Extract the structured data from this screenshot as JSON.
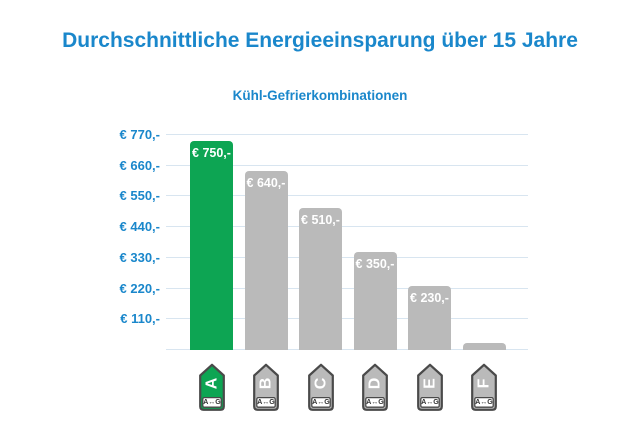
{
  "header": {
    "title": "Durchschnittliche Energieeinsparung über 15 Jahre",
    "subtitle": "Kühl-Gefrierkombinationen"
  },
  "colors": {
    "accent_blue": "#1a87cb",
    "bar_green": "#0da553",
    "bar_gray": "#bababa",
    "gridline": "#d8e5f0",
    "bar_label_text": "#ffffff",
    "icon_border": "#4a4a4a",
    "icon_letter": "#ffffff",
    "icon_scale_text": "#333333"
  },
  "chart_data": {
    "type": "bar",
    "title": "Durchschnittliche Energieeinsparung über 15 Jahre",
    "subtitle": "Kühl-Gefrierkombinationen",
    "categories": [
      "A",
      "B",
      "C",
      "D",
      "E",
      "F"
    ],
    "values": [
      750,
      640,
      510,
      350,
      230,
      25
    ],
    "bar_labels": [
      "€ 750,-",
      "€ 640,-",
      "€ 510,-",
      "€ 350,-",
      "€ 230,-",
      ""
    ],
    "bar_colors": [
      "#0da553",
      "#bababa",
      "#bababa",
      "#bababa",
      "#bababa",
      "#bababa"
    ],
    "y_ticks": [
      770,
      660,
      550,
      440,
      330,
      220,
      110
    ],
    "y_tick_labels": [
      "€ 770,-",
      "€ 660,-",
      "€ 550,-",
      "€ 440,-",
      "€ 330,-",
      "€ 220,-",
      "€ 110,-"
    ],
    "ylim": [
      0,
      770
    ],
    "xlabel": "",
    "ylabel": "",
    "grid": true,
    "legend": false,
    "highlight_category": "A",
    "x_axis_icons": {
      "type": "eu-energy-label-tag",
      "scale_text": "A↔G"
    }
  }
}
